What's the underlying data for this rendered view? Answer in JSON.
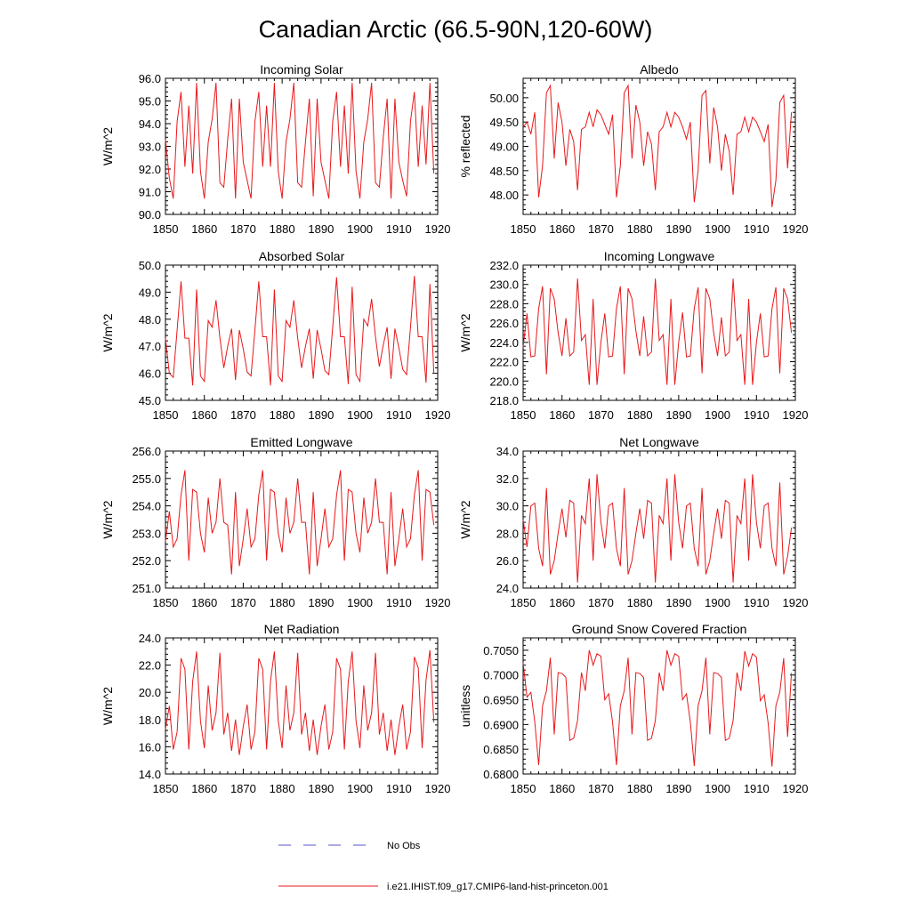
{
  "figure": {
    "title": "Canadian Arctic (66.5-90N,120-60W)",
    "legend": [
      {
        "label": "No Obs",
        "color": "#5555cc",
        "style": "dashed"
      },
      {
        "label": "i.e21.IHIST.f09_g17.CMIP6-land-hist-princeton.001",
        "color": "#e8181b",
        "style": "solid"
      }
    ],
    "line_color": "#e8181b"
  },
  "chart_data": [
    {
      "type": "line",
      "title": "Incoming Solar",
      "ylabel": "W/m^2",
      "xlim": [
        1850,
        1920
      ],
      "ylim": [
        90,
        96
      ],
      "x_ticks": [
        1850,
        1860,
        1870,
        1880,
        1890,
        1900,
        1910,
        1920
      ],
      "y_ticks": [
        90,
        91,
        92,
        93,
        94,
        95,
        96
      ],
      "y_tick_labels": [
        "90.0",
        "91.0",
        "92.0",
        "93.0",
        "94.0",
        "95.0",
        "96.0"
      ],
      "x_start": 1850,
      "values": [
        93.3,
        91.6,
        90.7,
        94.1,
        95.4,
        92.1,
        94.8,
        91.8,
        95.8,
        91.9,
        90.7,
        93.2,
        94.2,
        95.8,
        91.4,
        91.2,
        93.3,
        95.1,
        90.7,
        95.1,
        92.3,
        91.5,
        90.7,
        94.1,
        95.4,
        92.1,
        94.8,
        92.1,
        95.8,
        91.9,
        90.7,
        93.2,
        94.2,
        95.8,
        91.4,
        91.2,
        93.2,
        95.1,
        90.8,
        95.1,
        92.3,
        91.5,
        90.7,
        94.1,
        95.4,
        92.1,
        94.8,
        91.8,
        95.8,
        91.9,
        90.7,
        93.2,
        94.2,
        95.8,
        91.4,
        91.2,
        93.4,
        95.1,
        90.7,
        95.1,
        92.3,
        91.5,
        90.8,
        94.1,
        95.4,
        92.1,
        94.8,
        92.2,
        95.8,
        91.8
      ]
    },
    {
      "type": "line",
      "title": "Albedo",
      "ylabel": "% reflected",
      "xlim": [
        1850,
        1920
      ],
      "ylim": [
        47.6,
        50.4
      ],
      "x_ticks": [
        1850,
        1860,
        1870,
        1880,
        1890,
        1900,
        1910,
        1920
      ],
      "y_ticks": [
        48,
        48.5,
        49,
        49.5,
        50
      ],
      "y_tick_labels": [
        "48.00",
        "48.50",
        "49.00",
        "49.50",
        "50.00"
      ],
      "x_start": 1850,
      "values": [
        49.4,
        49.5,
        49.25,
        49.7,
        47.95,
        48.6,
        50.1,
        50.25,
        48.75,
        49.9,
        49.5,
        48.6,
        49.35,
        49.1,
        48.1,
        49.35,
        49.4,
        49.7,
        49.4,
        49.75,
        49.65,
        49.45,
        49.25,
        49.65,
        47.95,
        48.6,
        50.1,
        50.25,
        48.75,
        49.85,
        49.5,
        48.6,
        49.3,
        49.05,
        48.1,
        49.3,
        49.4,
        49.7,
        49.4,
        49.7,
        49.6,
        49.4,
        49.15,
        49.5,
        47.85,
        48.5,
        50.05,
        50.15,
        48.65,
        49.8,
        49.4,
        48.5,
        49.25,
        48.9,
        48.0,
        49.25,
        49.3,
        49.6,
        49.3,
        49.6,
        49.5,
        49.3,
        49.1,
        49.45,
        47.75,
        48.3,
        49.9,
        50.05,
        48.55,
        49.7
      ]
    },
    {
      "type": "line",
      "title": "Absorbed Solar",
      "ylabel": "W/m^2",
      "xlim": [
        1850,
        1920
      ],
      "ylim": [
        45,
        50
      ],
      "x_ticks": [
        1850,
        1860,
        1870,
        1880,
        1890,
        1900,
        1910,
        1920
      ],
      "y_ticks": [
        45,
        46,
        47,
        48,
        49,
        50
      ],
      "y_tick_labels": [
        "45.0",
        "46.0",
        "47.0",
        "48.0",
        "49.0",
        "50.0"
      ],
      "x_start": 1850,
      "values": [
        47.3,
        46.0,
        45.85,
        47.6,
        49.4,
        47.3,
        47.3,
        45.55,
        49.1,
        45.9,
        45.7,
        47.95,
        47.7,
        48.7,
        47.3,
        46.2,
        47.0,
        47.65,
        45.75,
        47.6,
        46.9,
        46.05,
        45.9,
        47.6,
        49.4,
        47.35,
        47.35,
        45.55,
        49.1,
        45.9,
        45.7,
        47.95,
        47.7,
        48.7,
        47.3,
        46.2,
        47.0,
        47.65,
        45.8,
        47.6,
        46.9,
        46.1,
        45.95,
        47.7,
        49.55,
        47.35,
        47.35,
        45.6,
        49.2,
        45.95,
        45.7,
        48.0,
        47.75,
        48.75,
        47.35,
        46.25,
        47.05,
        47.7,
        45.8,
        47.65,
        46.95,
        46.15,
        45.95,
        47.7,
        49.6,
        47.35,
        47.35,
        45.65,
        49.3,
        46.0
      ]
    },
    {
      "type": "line",
      "title": "Incoming Longwave",
      "ylabel": "W/m^2",
      "xlim": [
        1850,
        1920
      ],
      "ylim": [
        218,
        232
      ],
      "x_ticks": [
        1850,
        1860,
        1870,
        1880,
        1890,
        1900,
        1910,
        1920
      ],
      "y_ticks": [
        218,
        220,
        222,
        224,
        226,
        228,
        230,
        232
      ],
      "y_tick_labels": [
        "218.0",
        "220.0",
        "222.0",
        "224.0",
        "226.0",
        "228.0",
        "230.0",
        "232.0"
      ],
      "x_start": 1850,
      "values": [
        223.5,
        227.0,
        222.5,
        222.6,
        227.5,
        229.8,
        220.7,
        229.6,
        228.5,
        225.0,
        222.6,
        226.5,
        222.6,
        223.0,
        230.6,
        224.2,
        224.8,
        219.6,
        228.5,
        219.6,
        224.0,
        227.0,
        222.5,
        222.6,
        227.5,
        229.8,
        220.7,
        229.6,
        228.5,
        225.2,
        222.6,
        226.7,
        222.6,
        223.0,
        230.6,
        224.2,
        224.8,
        219.6,
        228.5,
        219.6,
        224.0,
        227.1,
        222.5,
        222.6,
        227.5,
        229.7,
        220.8,
        229.6,
        228.5,
        225.0,
        222.6,
        226.6,
        222.6,
        223.0,
        230.6,
        224.2,
        224.8,
        219.6,
        228.5,
        219.6,
        224.0,
        227.0,
        222.5,
        222.6,
        227.5,
        229.7,
        220.8,
        229.6,
        228.5,
        225.0
      ]
    },
    {
      "type": "line",
      "title": "Emitted Longwave",
      "ylabel": "W/m^2",
      "xlim": [
        1850,
        1920
      ],
      "ylim": [
        251,
        256
      ],
      "x_ticks": [
        1850,
        1860,
        1870,
        1880,
        1890,
        1900,
        1910,
        1920
      ],
      "y_ticks": [
        251,
        252,
        253,
        254,
        255,
        256
      ],
      "y_tick_labels": [
        "251.0",
        "252.0",
        "253.0",
        "254.0",
        "255.0",
        "256.0"
      ],
      "x_start": 1850,
      "values": [
        252.7,
        253.8,
        252.5,
        252.8,
        254.4,
        255.3,
        252.0,
        254.6,
        254.5,
        253.0,
        252.3,
        254.3,
        253.0,
        253.4,
        255.0,
        253.4,
        253.3,
        251.5,
        254.5,
        251.8,
        252.8,
        253.9,
        252.5,
        252.8,
        254.4,
        255.3,
        252.0,
        254.6,
        254.5,
        253.0,
        252.3,
        254.3,
        253.0,
        253.4,
        255.0,
        253.4,
        253.4,
        251.5,
        254.5,
        251.8,
        252.8,
        253.9,
        252.5,
        252.8,
        254.4,
        255.3,
        252.0,
        254.6,
        254.5,
        253.0,
        252.3,
        254.3,
        253.0,
        253.4,
        255.0,
        253.4,
        253.4,
        251.5,
        254.5,
        251.8,
        252.8,
        253.9,
        252.5,
        252.8,
        254.4,
        255.3,
        252.0,
        254.6,
        254.5,
        253.3
      ]
    },
    {
      "type": "line",
      "title": "Net Longwave",
      "ylabel": "W/m^2",
      "xlim": [
        1850,
        1920
      ],
      "ylim": [
        24,
        34
      ],
      "x_ticks": [
        1850,
        1860,
        1870,
        1880,
        1890,
        1900,
        1910,
        1920
      ],
      "y_ticks": [
        24,
        26,
        28,
        30,
        32,
        34
      ],
      "y_tick_labels": [
        "24.0",
        "26.0",
        "28.0",
        "30.0",
        "32.0",
        "34.0"
      ],
      "x_start": 1850,
      "values": [
        29.0,
        27.0,
        30.0,
        30.2,
        26.9,
        25.6,
        31.3,
        25.0,
        26.0,
        28.0,
        29.8,
        27.7,
        30.4,
        30.2,
        24.4,
        29.3,
        28.7,
        32.0,
        26.0,
        32.3,
        28.8,
        26.9,
        30.0,
        30.2,
        26.9,
        25.6,
        31.3,
        25.0,
        26.0,
        28.0,
        29.8,
        27.6,
        30.4,
        30.2,
        24.4,
        29.3,
        28.7,
        32.0,
        26.0,
        32.3,
        28.8,
        26.9,
        30.0,
        30.2,
        26.9,
        25.6,
        31.3,
        25.0,
        26.0,
        28.0,
        29.8,
        27.6,
        30.4,
        30.2,
        24.4,
        29.3,
        28.7,
        32.0,
        26.0,
        32.3,
        28.8,
        26.9,
        30.0,
        30.2,
        26.9,
        25.6,
        31.7,
        25.0,
        26.3,
        28.4
      ]
    },
    {
      "type": "line",
      "title": "Net Radiation",
      "ylabel": "W/m^2",
      "xlim": [
        1850,
        1920
      ],
      "ylim": [
        14,
        24
      ],
      "x_ticks": [
        1850,
        1860,
        1870,
        1880,
        1890,
        1900,
        1910,
        1920
      ],
      "y_ticks": [
        14,
        16,
        18,
        20,
        22,
        24
      ],
      "y_tick_labels": [
        "14.0",
        "16.0",
        "18.0",
        "20.0",
        "22.0",
        "24.0"
      ],
      "x_start": 1850,
      "values": [
        17.3,
        19.0,
        15.8,
        17.1,
        22.5,
        21.7,
        15.8,
        20.8,
        23.0,
        17.9,
        15.9,
        20.5,
        17.2,
        18.5,
        22.9,
        16.9,
        18.5,
        15.7,
        18.0,
        15.4,
        17.5,
        19.1,
        15.8,
        17.1,
        22.5,
        21.7,
        15.8,
        20.8,
        23.0,
        17.9,
        15.9,
        20.5,
        17.2,
        18.5,
        22.9,
        16.9,
        18.5,
        15.7,
        18.0,
        15.4,
        17.5,
        19.1,
        15.8,
        17.1,
        22.5,
        21.7,
        15.8,
        20.8,
        23.0,
        17.9,
        15.9,
        20.5,
        17.2,
        18.5,
        22.9,
        16.9,
        18.5,
        15.7,
        18.0,
        15.4,
        17.5,
        19.1,
        15.8,
        17.1,
        22.6,
        21.8,
        15.9,
        20.9,
        23.1,
        17.8
      ]
    },
    {
      "type": "line",
      "title": "Ground Snow Covered Fraction",
      "ylabel": "unitless",
      "xlim": [
        1850,
        1920
      ],
      "ylim": [
        0.68,
        0.7075
      ],
      "x_ticks": [
        1850,
        1860,
        1870,
        1880,
        1890,
        1900,
        1910,
        1920
      ],
      "y_ticks": [
        0.68,
        0.685,
        0.69,
        0.695,
        0.7,
        0.705
      ],
      "y_tick_labels": [
        "0.6800",
        "0.6850",
        "0.6900",
        "0.6950",
        "0.7000",
        "0.7050"
      ],
      "x_start": 1850,
      "values": [
        0.7025,
        0.6955,
        0.6965,
        0.6905,
        0.6818,
        0.6938,
        0.6968,
        0.7035,
        0.688,
        0.7005,
        0.7003,
        0.6995,
        0.6868,
        0.6872,
        0.6908,
        0.7005,
        0.6968,
        0.705,
        0.702,
        0.7043,
        0.7038,
        0.695,
        0.6962,
        0.6905,
        0.6818,
        0.6938,
        0.6968,
        0.7035,
        0.688,
        0.7005,
        0.7003,
        0.6995,
        0.6868,
        0.6872,
        0.6908,
        0.7005,
        0.6968,
        0.705,
        0.702,
        0.7043,
        0.7038,
        0.695,
        0.6962,
        0.6905,
        0.6816,
        0.6938,
        0.6968,
        0.7035,
        0.688,
        0.7005,
        0.7003,
        0.6995,
        0.6868,
        0.6872,
        0.6908,
        0.7005,
        0.6968,
        0.7048,
        0.7018,
        0.7043,
        0.7036,
        0.6948,
        0.696,
        0.6903,
        0.6815,
        0.6938,
        0.6965,
        0.7034,
        0.6875,
        0.7004
      ]
    }
  ]
}
